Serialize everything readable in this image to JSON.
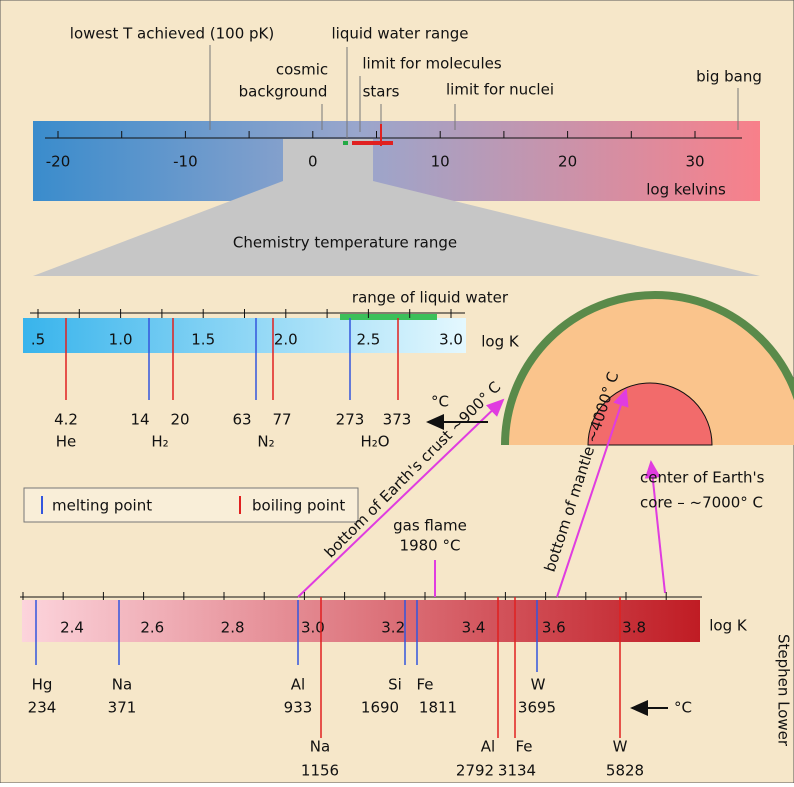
{
  "top_scale": {
    "tick_labels": [
      "-20",
      "-10",
      "0",
      "10",
      "20",
      "30"
    ],
    "unit": "log kelvins"
  },
  "top_annotations": {
    "lowest": "lowest T achieved (100 pK)",
    "liquid_water": "liquid water range",
    "cosmic_background": [
      "cosmic",
      "background"
    ],
    "limit_molecules": "limit for molecules",
    "stars": "stars",
    "limit_nuclei": "limit for nuclei",
    "big_bang": "big bang"
  },
  "zoom_label": "Chemistry temperature range",
  "chemistry_scale": {
    "liquid_water": "range of liquid water",
    "tick_labels": [
      ".5",
      "1.0",
      "1.5",
      "2.0",
      "2.5",
      "3.0"
    ],
    "unit": "log K",
    "temperatures": [
      "4.2",
      "14",
      "20",
      "63",
      "77",
      "273",
      "373"
    ],
    "substances": [
      "He",
      "H₂",
      "N₂",
      "H₂O"
    ],
    "celsius": "°C"
  },
  "legend": {
    "melting": "melting point",
    "boiling": "boiling point"
  },
  "earth": {
    "crust": "bottom of Earth's crust ~900° C",
    "mantle": "bottom of mantle ~4000° C",
    "core": [
      "center of Earth's",
      "core – ~7000° C"
    ]
  },
  "gas_flame": [
    "gas flame",
    "1980 °C"
  ],
  "metals_scale": {
    "tick_labels": [
      "2.4",
      "2.6",
      "2.8",
      "3.0",
      "3.2",
      "3.4",
      "3.6",
      "3.8"
    ],
    "unit": "log K",
    "melting": [
      {
        "element": "Hg",
        "temp": "234"
      },
      {
        "element": "Na",
        "temp": "371"
      },
      {
        "element": "Al",
        "temp": "933"
      },
      {
        "element": "Si",
        "temp": "1690"
      },
      {
        "element": "Fe",
        "temp": "1811"
      },
      {
        "element": "W",
        "temp": "3695"
      }
    ],
    "boiling": [
      {
        "element": "Na",
        "temp": "1156"
      },
      {
        "element": "Al",
        "temp": "2792"
      },
      {
        "element": "Fe",
        "temp": "3134"
      },
      {
        "element": "W",
        "temp": "5828"
      }
    ],
    "celsius": "°C"
  },
  "credit": "Stephen Lower"
}
